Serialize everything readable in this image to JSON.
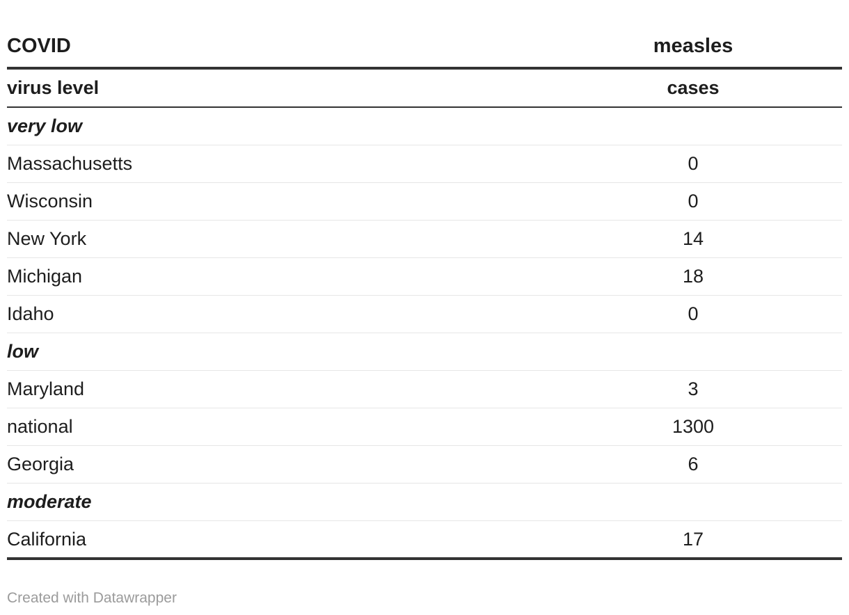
{
  "chart_data": {
    "type": "table",
    "header": {
      "group_left": "COVID",
      "group_right": "measles",
      "col_left": "virus level",
      "col_right": "cases"
    },
    "groups": [
      {
        "label": "very low",
        "rows": [
          {
            "state": "Massachusetts",
            "cases": "0"
          },
          {
            "state": "Wisconsin",
            "cases": "0"
          },
          {
            "state": "New York",
            "cases": "14"
          },
          {
            "state": "Michigan",
            "cases": "18"
          },
          {
            "state": "Idaho",
            "cases": "0"
          }
        ]
      },
      {
        "label": "low",
        "rows": [
          {
            "state": "Maryland",
            "cases": "3"
          },
          {
            "state": "national",
            "cases": "1300"
          },
          {
            "state": "Georgia",
            "cases": "6"
          }
        ]
      },
      {
        "label": "moderate",
        "rows": [
          {
            "state": "California",
            "cases": "17"
          }
        ]
      }
    ]
  },
  "footer": {
    "credit": "Created with Datawrapper"
  }
}
